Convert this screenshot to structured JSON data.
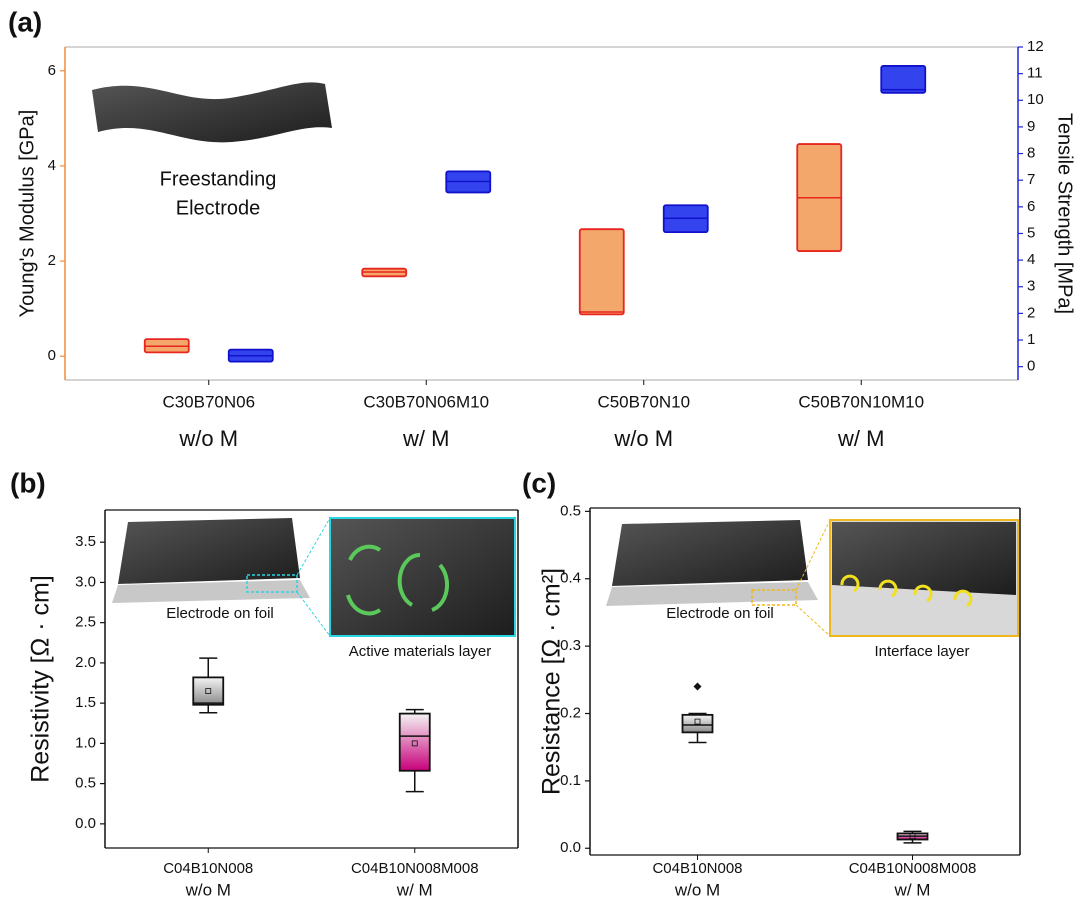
{
  "chart_data": [
    {
      "type": "floating-box",
      "panel_label": "(a)",
      "inset_label": [
        "Freestanding",
        "Electrode"
      ],
      "categories": [
        "C30B70N06",
        "C30B70N06M10",
        "C50B70N10",
        "C50B70N10M10"
      ],
      "category_notes": [
        "w/o M",
        "w/ M",
        "w/o M",
        "w/ M"
      ],
      "ylabel": "Young's Modulus [GPa]",
      "ycolor": "#f08c3c",
      "y2label": "Tensile Strength [MPa]",
      "y2color": "#2222dd",
      "ylim": [
        -0.5,
        6.5
      ],
      "yticks": [
        0,
        2,
        4,
        6
      ],
      "y2lim": [
        -0.5,
        12
      ],
      "y2ticks": [
        0,
        1,
        2,
        3,
        4,
        5,
        6,
        7,
        8,
        9,
        10,
        11,
        12
      ],
      "series": [
        {
          "axis": "y",
          "color": "#f4a76a",
          "edge": "#e8251f",
          "q1": [
            0.08,
            1.68,
            0.88,
            2.21
          ],
          "median": [
            0.21,
            1.77,
            0.93,
            3.33
          ],
          "q3": [
            0.36,
            1.84,
            2.67,
            4.46
          ]
        },
        {
          "axis": "y2",
          "color": "#3344ee",
          "edge": "#1111cc",
          "q1": [
            0.19,
            6.54,
            5.05,
            10.28
          ],
          "median": [
            0.41,
            6.95,
            5.57,
            10.4
          ],
          "q3": [
            0.64,
            7.33,
            6.06,
            11.29
          ]
        }
      ]
    },
    {
      "type": "box",
      "panel_label": "(b)",
      "annotations": [
        "Electrode on foil",
        "Active materials layer"
      ],
      "categories": [
        "C04B10N008",
        "C04B10N008M008"
      ],
      "category_notes": [
        "w/o M",
        "w/ M"
      ],
      "ylabel": "Resistivity [Ω · cm]",
      "ylim": [
        -0.3,
        3.9
      ],
      "yticks": [
        {
          "value": 0,
          "label": "0.0"
        },
        0.5,
        {
          "value": 1,
          "label": "1.0"
        },
        1.5,
        {
          "value": 2,
          "label": "2.0"
        },
        2.5,
        {
          "value": 3,
          "label": "3.0"
        },
        3.5
      ],
      "series": [
        {
          "colors": [
            "#8a8a8a",
            "#c8007a"
          ],
          "whislo": [
            1.38,
            0.4
          ],
          "q1": [
            1.48,
            0.66
          ],
          "median": [
            1.5,
            1.09
          ],
          "q3": [
            1.82,
            1.37
          ],
          "whishi": [
            2.06,
            1.42
          ],
          "mean": [
            1.65,
            1.0
          ]
        }
      ]
    },
    {
      "type": "box",
      "panel_label": "(c)",
      "annotations": [
        "Electrode on foil",
        "Interface layer"
      ],
      "categories": [
        "C04B10N008",
        "C04B10N008M008"
      ],
      "category_notes": [
        "w/o M",
        "w/ M"
      ],
      "ylabel": "Resistance [Ω · cm²]",
      "ylim": [
        -0.01,
        0.505
      ],
      "yticks": [
        {
          "value": 0,
          "label": "0.0"
        },
        0.1,
        0.2,
        0.3,
        0.4,
        0.5
      ],
      "series": [
        {
          "colors": [
            "#8a8a8a",
            "#c8007a"
          ],
          "whislo": [
            0.157,
            0.008
          ],
          "q1": [
            0.172,
            0.013
          ],
          "median": [
            0.183,
            0.018
          ],
          "q3": [
            0.198,
            0.022
          ],
          "whishi": [
            0.2,
            0.025
          ],
          "mean": [
            0.188,
            0.018
          ],
          "fliers": [
            [
              0.24
            ],
            []
          ]
        }
      ]
    }
  ]
}
